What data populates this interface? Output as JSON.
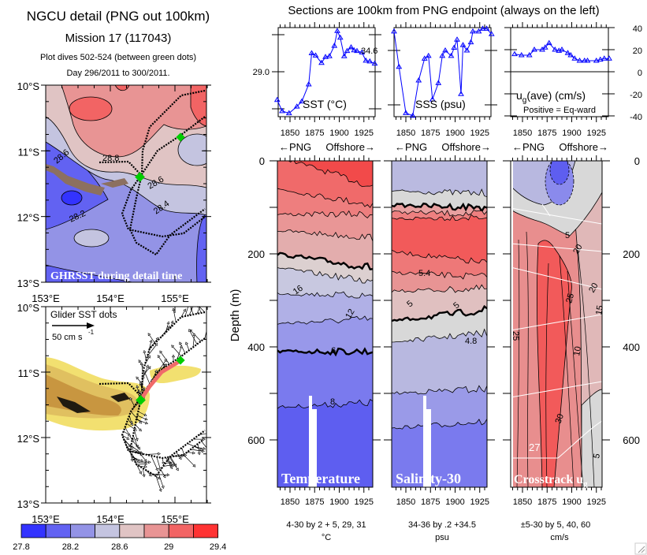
{
  "header": {
    "title": "NGCU detail (PNG out 100km)",
    "mission": "Mission 17 (117043)",
    "dives": "Plot dives 502-524 (between green dots)",
    "days": "Day 296/2011 to 300/2011.",
    "sections_note": "Sections are 100km from PNG endpoint (always on the left)"
  },
  "maps": {
    "lat_labels": [
      "10°S",
      "11°S",
      "12°S",
      "13°S"
    ],
    "lon_labels": [
      "153°E",
      "154°E",
      "155°E"
    ],
    "sst_map": {
      "label": "GHRSST during detail time",
      "contour_labels": [
        "28.6",
        "28.8",
        "28.6",
        "28.4",
        "28.2"
      ]
    },
    "glider_map": {
      "label": "Glider SST dots",
      "scale_label": "50 cm s",
      "scale_exp": "-1"
    },
    "colorbar": {
      "tick_labels": [
        "27.8",
        "28.2",
        "28.6",
        "29",
        "29.4"
      ],
      "levels": [
        27.8,
        28.0,
        28.2,
        28.4,
        28.6,
        28.8,
        29.0,
        29.2,
        29.4
      ],
      "colors": [
        "#3333ff",
        "#6262f2",
        "#9393e6",
        "#c4c4e0",
        "#e0c4c4",
        "#e89494",
        "#f26464",
        "#ff3333"
      ]
    }
  },
  "colors": {
    "line": "#0000ff",
    "green_dot": "#00cc00",
    "track": "#000000",
    "glider_red": "#f06a6a"
  },
  "sections": {
    "dir_left": "←PNG",
    "dir_right": "Offshore→",
    "depth_label": "Depth (m)",
    "depth_ticks": [
      "0",
      "200",
      "400",
      "600"
    ],
    "x_tick_labels": [
      "1850",
      "1875",
      "1900",
      "1925"
    ]
  },
  "chart_data": [
    {
      "type": "line",
      "title": "SST (°C)",
      "x_tick_labels": [
        "1850",
        "1875",
        "1900",
        "1925"
      ],
      "y_tick_labels": [
        "29.0"
      ],
      "x": [
        1837,
        1842,
        1849,
        1857,
        1862,
        1869,
        1872,
        1876,
        1882,
        1886,
        1890,
        1895,
        1898,
        1901,
        1905,
        1908,
        1912,
        1915,
        1918,
        1923,
        1927,
        1931,
        1936
      ],
      "y": [
        28.62,
        28.47,
        28.44,
        28.53,
        28.6,
        28.83,
        29.25,
        29.22,
        29.12,
        29.2,
        29.21,
        29.35,
        29.55,
        29.46,
        29.21,
        29.28,
        29.33,
        29.29,
        29.28,
        29.26,
        29.15,
        29.14,
        29.11
      ]
    },
    {
      "type": "line",
      "title": "SSS (psu)",
      "x_tick_labels": [
        "1850",
        "1875",
        "1900",
        "1925"
      ],
      "y_tick_labels": [
        "34.6"
      ],
      "x": [
        1838,
        1843,
        1850,
        1857,
        1863,
        1869,
        1873,
        1877,
        1883,
        1887,
        1890,
        1896,
        1899,
        1902,
        1906,
        1908,
        1912,
        1916,
        1918,
        1924,
        1928,
        1932,
        1937
      ],
      "y": [
        34.67,
        34.54,
        34.37,
        34.36,
        34.49,
        34.57,
        34.58,
        34.42,
        34.48,
        34.58,
        34.6,
        34.58,
        34.61,
        34.64,
        34.44,
        34.62,
        34.6,
        34.63,
        34.67,
        34.67,
        34.68,
        34.68,
        34.66
      ]
    },
    {
      "type": "line",
      "title_main": "u",
      "title_sub": "g",
      "title_rest": "(ave) (cm/s)",
      "note": "Positive = Eq-ward",
      "x_tick_labels": [
        "1850",
        "1875",
        "1900",
        "1925"
      ],
      "y_tick_labels": [
        "40",
        "20",
        "0",
        "-20",
        "-40"
      ],
      "ylim": [
        -40,
        40
      ],
      "x": [
        1842,
        1849,
        1857,
        1862,
        1870,
        1873,
        1877,
        1883,
        1887,
        1890,
        1896,
        1899,
        1903,
        1908,
        1913,
        1916,
        1925,
        1929,
        1933,
        1938
      ],
      "y": [
        16,
        15,
        15,
        20,
        20,
        22,
        26,
        20,
        19,
        20,
        17,
        15,
        12,
        10,
        10,
        10,
        10,
        11,
        12,
        12
      ]
    },
    {
      "type": "heatmap",
      "title": "Temperature",
      "caption": "4-30 by 2 + 5, 29, 31",
      "unit": "°C",
      "contour_labels": [
        "16",
        "12",
        "8",
        "6"
      ]
    },
    {
      "type": "heatmap",
      "title": "Salinity-30",
      "caption": "34-36 by .2 +34.5",
      "unit": "psu",
      "contour_labels": [
        "5.4",
        "5",
        "5",
        "4.8"
      ]
    },
    {
      "type": "heatmap",
      "title_main": "Crosstrack u",
      "title_sub": "g",
      "caption": "±5-30 by 5, 40, 60",
      "unit": "cm/s",
      "contour_labels": [
        "5",
        "20",
        "25",
        "20",
        "15",
        "25",
        "10",
        "30",
        "27",
        "5"
      ]
    }
  ]
}
